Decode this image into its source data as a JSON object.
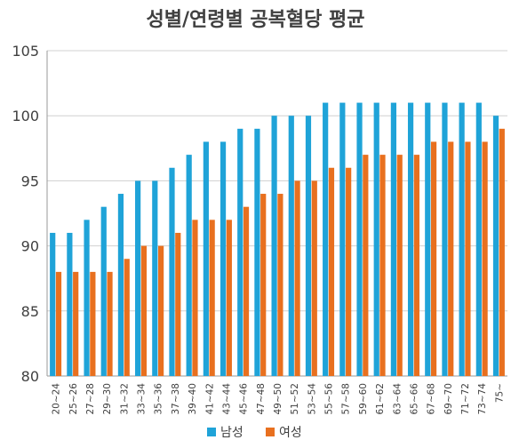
{
  "chart_data": {
    "type": "bar",
    "title": "성별/연령별 공복혈당 평균",
    "categories": [
      "20~24",
      "25~26",
      "27~28",
      "29~30",
      "31~32",
      "33~34",
      "35~36",
      "37~38",
      "39~40",
      "41~42",
      "43~44",
      "45~46",
      "47~48",
      "49~50",
      "51~52",
      "53~54",
      "55~56",
      "57~58",
      "59~60",
      "61~62",
      "63~64",
      "65~66",
      "67~68",
      "69~70",
      "71~72",
      "73~74",
      "75~"
    ],
    "series": [
      {
        "name": "남성",
        "color": "#1fa3d8",
        "values": [
          91,
          91,
          92,
          93,
          94,
          95,
          95,
          96,
          97,
          98,
          98,
          99,
          99,
          100,
          100,
          100,
          101,
          101,
          101,
          101,
          101,
          101,
          101,
          101,
          101,
          101,
          100
        ]
      },
      {
        "name": "여성",
        "color": "#e8701f",
        "values": [
          88,
          88,
          88,
          88,
          89,
          90,
          90,
          91,
          92,
          92,
          92,
          93,
          94,
          94,
          95,
          95,
          96,
          96,
          97,
          97,
          97,
          97,
          98,
          98,
          98,
          98,
          99
        ]
      }
    ],
    "ylim": [
      80,
      105
    ],
    "yticks": [
      80,
      85,
      90,
      95,
      100,
      105
    ],
    "grid": true,
    "legend_position": "bottom"
  }
}
